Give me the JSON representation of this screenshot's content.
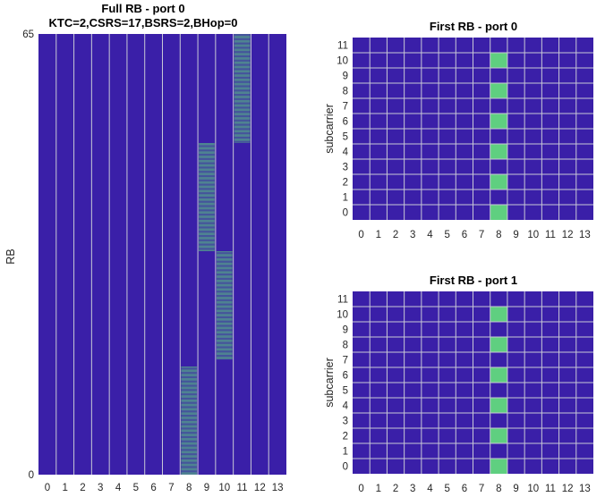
{
  "colors": {
    "background": "#3a1fa8",
    "active": "#5fcf80",
    "grid": "#c8c8d6"
  },
  "chart_data": [
    {
      "type": "heatmap",
      "title": "Full RB - port 0",
      "subtitle": "KTC=2,CSRS=17,BSRS=2,BHop=0",
      "xlabel": "",
      "ylabel": "RB",
      "x_ticks": [
        "0",
        "1",
        "2",
        "3",
        "4",
        "5",
        "6",
        "7",
        "8",
        "9",
        "10",
        "11",
        "12",
        "13"
      ],
      "y_ticks": [
        "0",
        "65"
      ],
      "xlim": [
        0,
        13
      ],
      "ylim": [
        0,
        65
      ],
      "rows_per_rb": 12,
      "comb_offset": 0,
      "comb_spacing": 2,
      "active_columns": [
        {
          "symbol": 8,
          "rb_start": 0,
          "rb_end": 16
        },
        {
          "symbol": 9,
          "rb_start": 33,
          "rb_end": 49
        },
        {
          "symbol": 10,
          "rb_start": 17,
          "rb_end": 33
        },
        {
          "symbol": 11,
          "rb_start": 49,
          "rb_end": 65
        }
      ]
    },
    {
      "type": "heatmap",
      "title": "First RB - port 0",
      "xlabel": "",
      "ylabel": "subcarrier",
      "x_ticks": [
        "0",
        "1",
        "2",
        "3",
        "4",
        "5",
        "6",
        "7",
        "8",
        "9",
        "10",
        "11",
        "12",
        "13"
      ],
      "y_ticks": [
        "0",
        "1",
        "2",
        "3",
        "4",
        "5",
        "6",
        "7",
        "8",
        "9",
        "10",
        "11"
      ],
      "active_symbol": 8,
      "active_subcarriers": [
        0,
        2,
        4,
        6,
        8,
        10
      ]
    },
    {
      "type": "heatmap",
      "title": "First RB - port 1",
      "xlabel": "",
      "ylabel": "subcarrier",
      "x_ticks": [
        "0",
        "1",
        "2",
        "3",
        "4",
        "5",
        "6",
        "7",
        "8",
        "9",
        "10",
        "11",
        "12",
        "13"
      ],
      "y_ticks": [
        "0",
        "1",
        "2",
        "3",
        "4",
        "5",
        "6",
        "7",
        "8",
        "9",
        "10",
        "11"
      ],
      "active_symbol": 8,
      "active_subcarriers": [
        0,
        2,
        4,
        6,
        8,
        10
      ]
    }
  ]
}
